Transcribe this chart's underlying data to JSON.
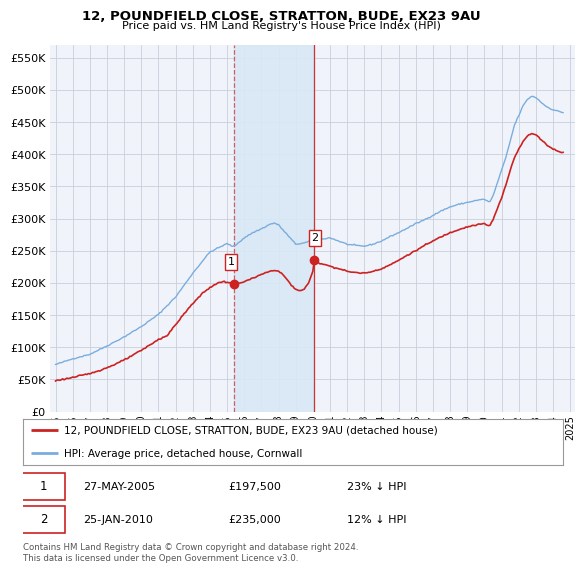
{
  "title": "12, POUNDFIELD CLOSE, STRATTON, BUDE, EX23 9AU",
  "subtitle": "Price paid vs. HM Land Registry's House Price Index (HPI)",
  "footer": "Contains HM Land Registry data © Crown copyright and database right 2024.\nThis data is licensed under the Open Government Licence v3.0.",
  "legend_line1": "12, POUNDFIELD CLOSE, STRATTON, BUDE, EX23 9AU (detached house)",
  "legend_line2": "HPI: Average price, detached house, Cornwall",
  "transaction1_date": "27-MAY-2005",
  "transaction1_price": "£197,500",
  "transaction1_hpi": "23% ↓ HPI",
  "transaction2_date": "25-JAN-2010",
  "transaction2_price": "£235,000",
  "transaction2_hpi": "12% ↓ HPI",
  "vline1_x": 2005.38,
  "vline2_x": 2010.07,
  "marker1_x": 2005.38,
  "marker1_y": 197500,
  "marker2_x": 2010.07,
  "marker2_y": 235000,
  "ylim": [
    0,
    570000
  ],
  "xlim_min": 1994.7,
  "xlim_max": 2025.3,
  "hpi_color": "#7aadde",
  "price_color": "#cc2222",
  "vline_color": "#cc2222",
  "background_color": "#f0f4fa",
  "plot_bg_color": "#f0f4fa",
  "grid_color": "#c8d0dc",
  "yticks": [
    0,
    50000,
    100000,
    150000,
    200000,
    250000,
    300000,
    350000,
    400000,
    450000,
    500000,
    550000
  ],
  "xticks": [
    1995,
    1996,
    1997,
    1998,
    1999,
    2000,
    2001,
    2002,
    2003,
    2004,
    2005,
    2006,
    2007,
    2008,
    2009,
    2010,
    2011,
    2012,
    2013,
    2014,
    2015,
    2016,
    2017,
    2018,
    2019,
    2020,
    2021,
    2022,
    2023,
    2024,
    2025
  ]
}
